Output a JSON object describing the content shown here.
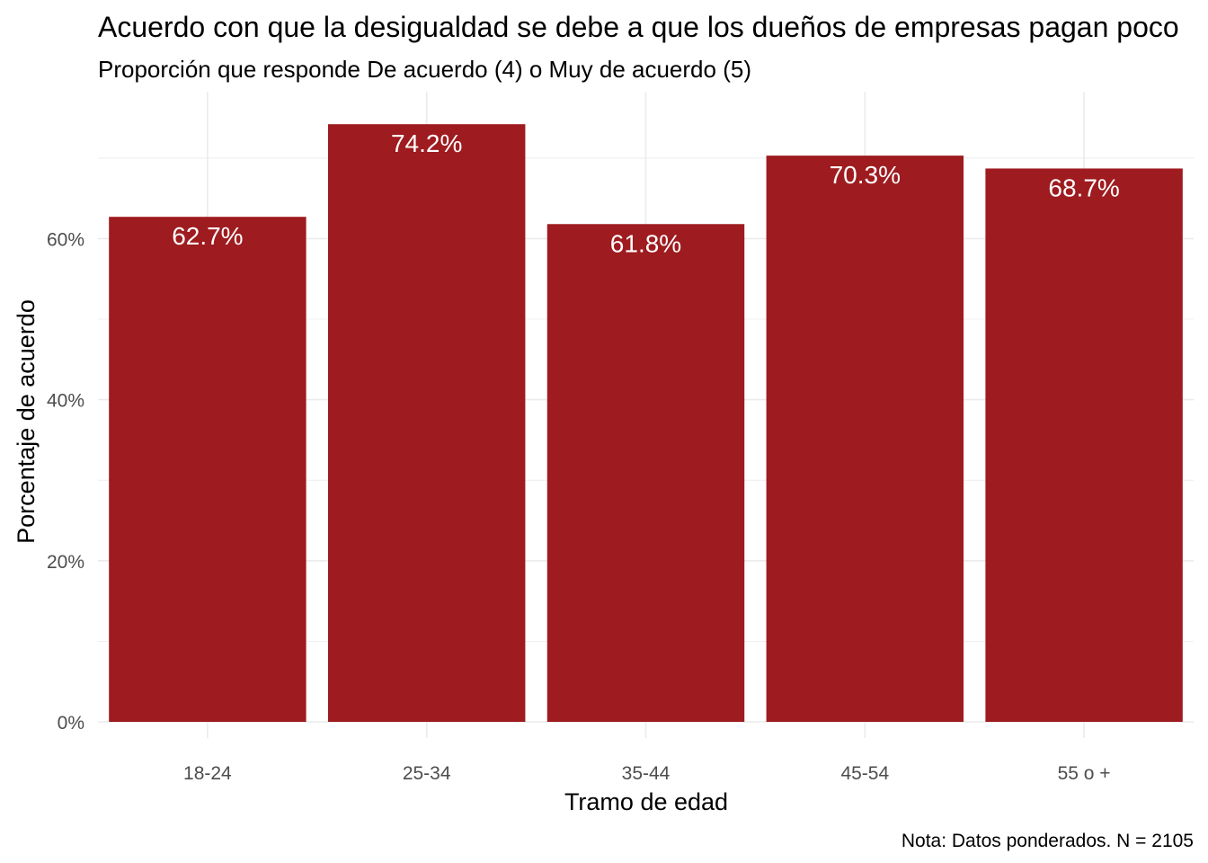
{
  "chart_data": {
    "type": "bar",
    "title": "Acuerdo con que la desigualdad se debe a que los dueños de empresas pagan poco",
    "subtitle": "Proporción que responde De acuerdo (4) o Muy de acuerdo (5)",
    "xlabel": "Tramo de edad",
    "ylabel": "Porcentaje de acuerdo",
    "caption": "Nota: Datos ponderados. N = 2105",
    "categories": [
      "18-24",
      "25-34",
      "35-44",
      "45-54",
      "55 o +"
    ],
    "values": [
      62.7,
      74.2,
      61.8,
      70.3,
      68.7
    ],
    "value_labels": [
      "62.7%",
      "74.2%",
      "61.8%",
      "70.3%",
      "68.7%"
    ],
    "ylim": [
      0,
      77
    ],
    "y_ticks": [
      0,
      20,
      40,
      60
    ],
    "y_tick_labels": [
      "0%",
      "20%",
      "40%",
      "60%"
    ],
    "grid": true,
    "bar_color": "#9E1B1F",
    "label_color": "#FFFFFF",
    "grid_color": "#EBEBEB"
  }
}
